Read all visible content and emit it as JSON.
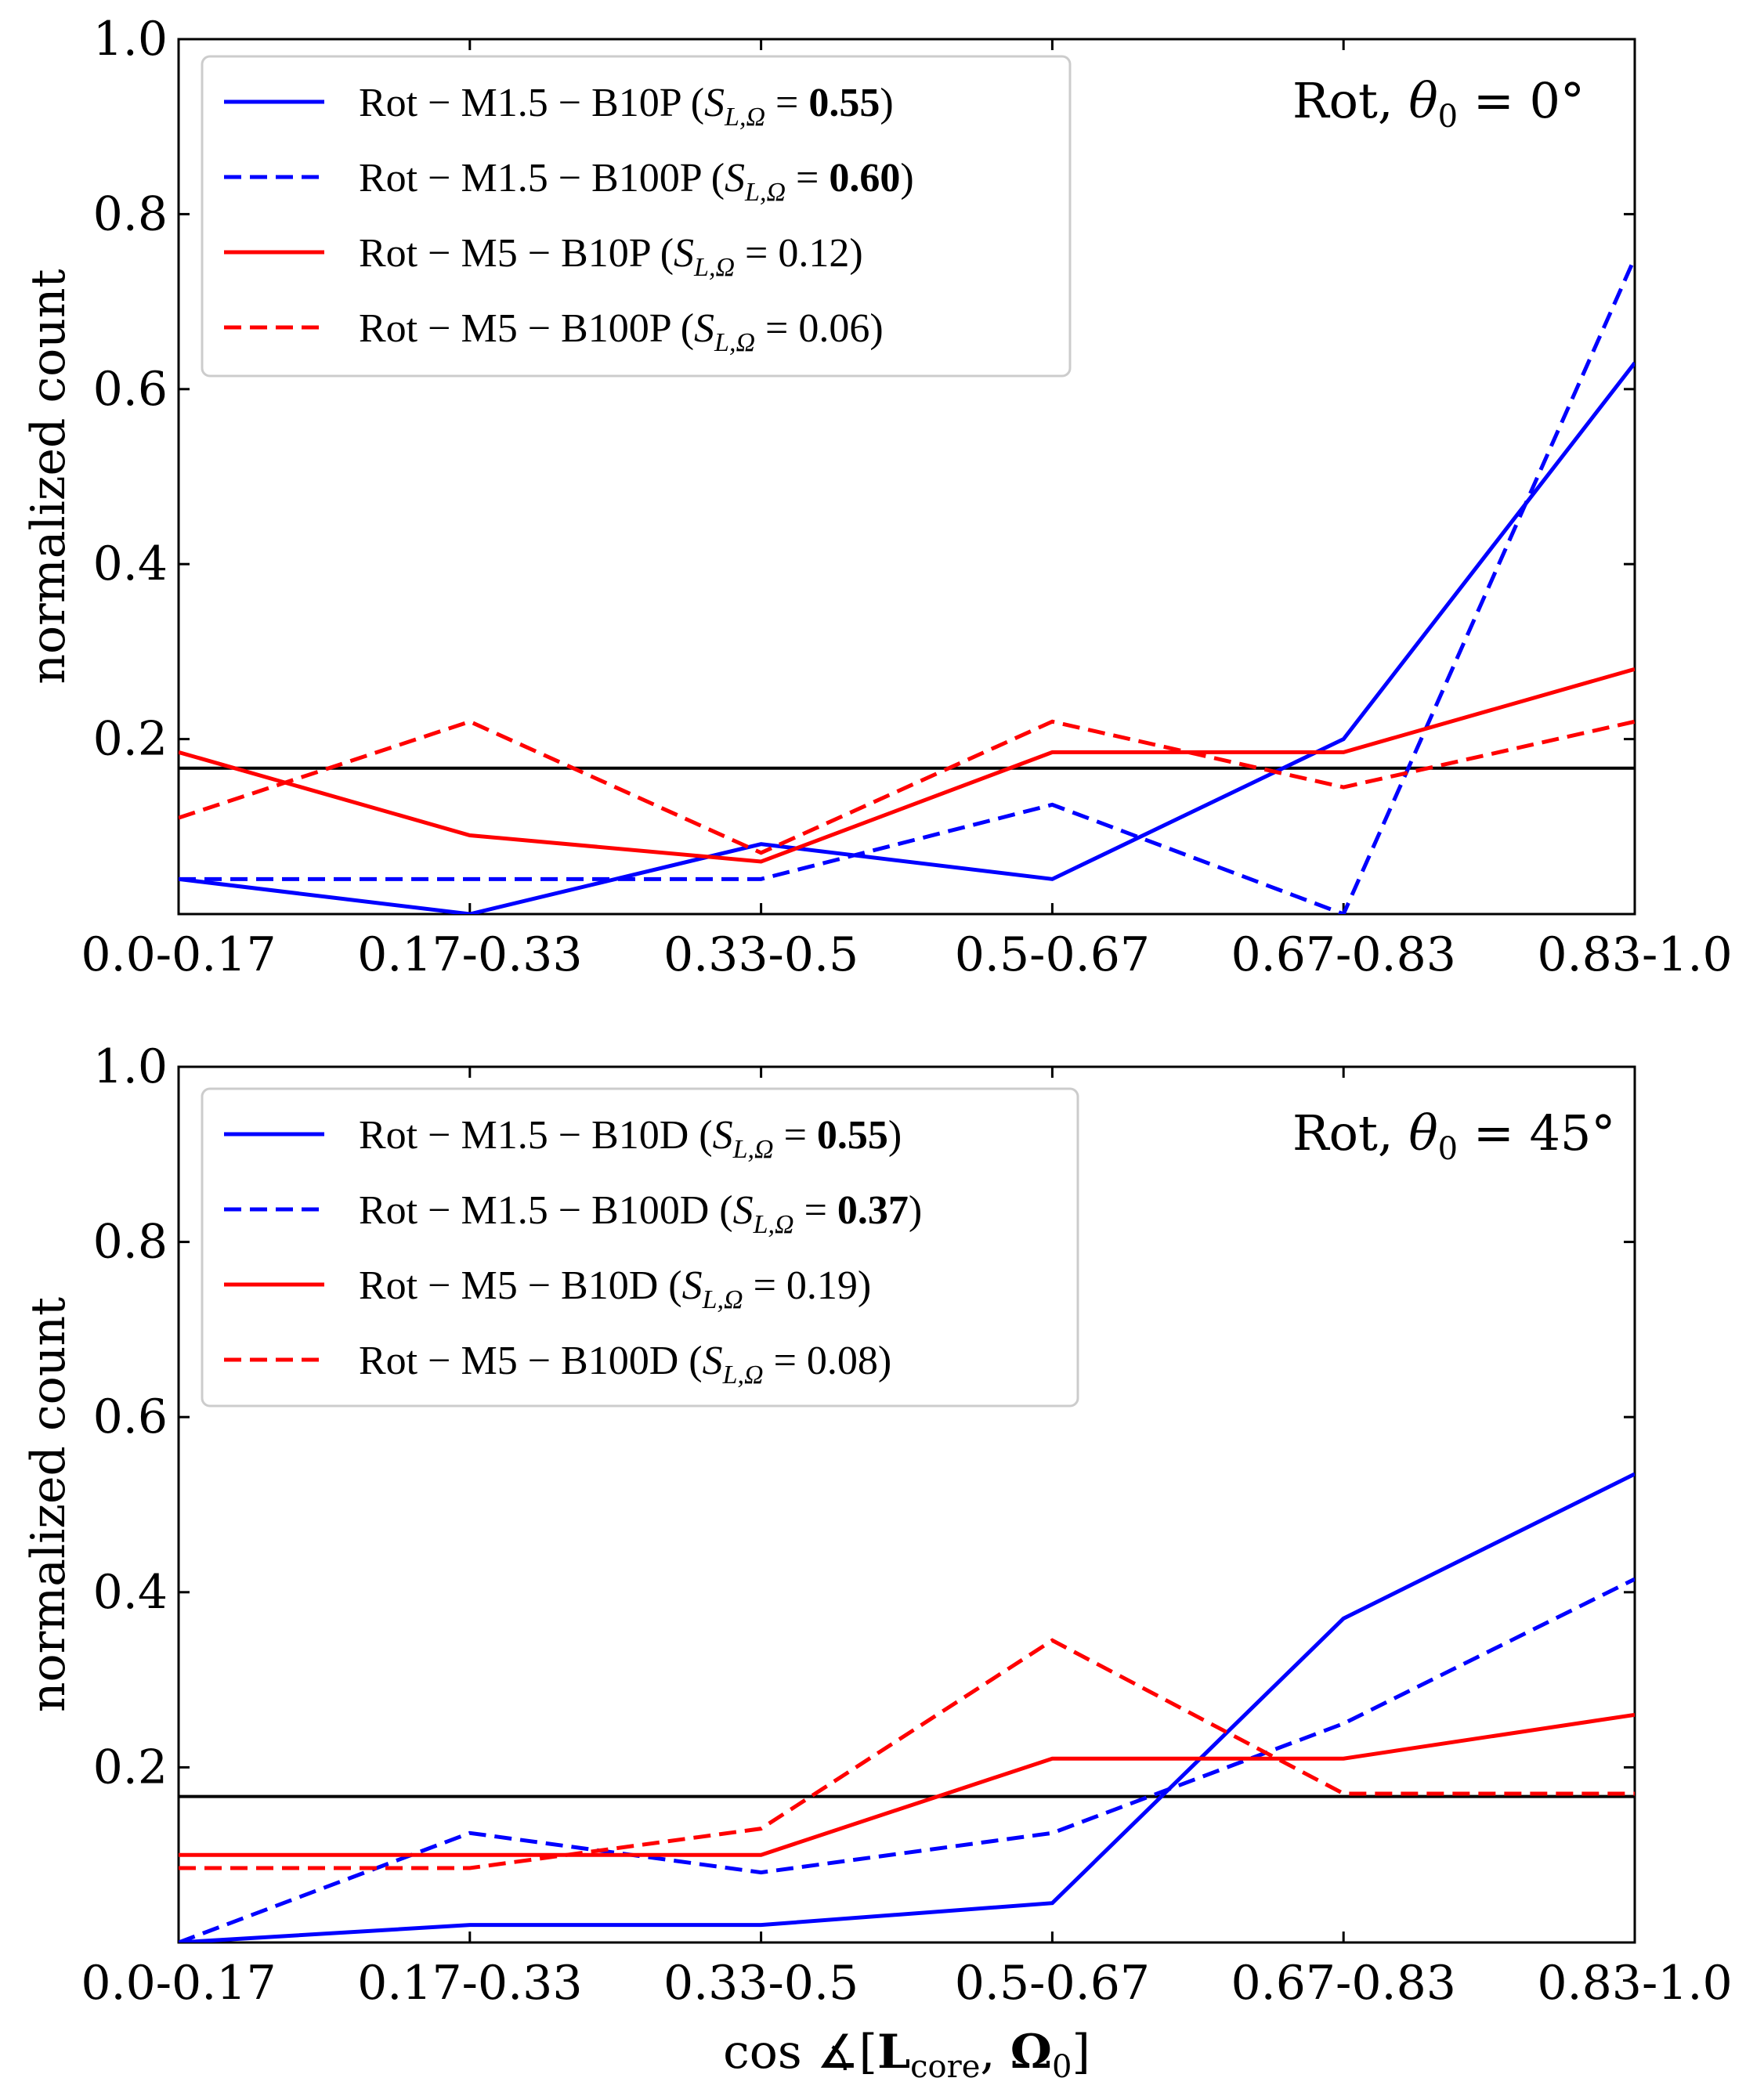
{
  "colors": {
    "blue": "#0000ff",
    "red": "#ff0000",
    "black": "#000000",
    "legend_border": "#cccccc"
  },
  "chart_data": [
    {
      "type": "line",
      "panel": "top",
      "annotation": "Rot, θ₀ = 0°",
      "annotation_parts": {
        "rot": "Rot,",
        "theta": "θ",
        "sub": "0",
        "eq": " = 0°"
      },
      "categories": [
        "0.0-0.17",
        "0.17-0.33",
        "0.33-0.5",
        "0.5-0.67",
        "0.67-0.83",
        "0.83-1.0"
      ],
      "ylabel": "normalized count",
      "xlabel": "",
      "ylim": [
        0,
        1.0
      ],
      "yticks": [
        "0.2",
        "0.4",
        "0.6",
        "0.8",
        "1.0"
      ],
      "ytick_values": [
        0.2,
        0.4,
        0.6,
        0.8,
        1.0
      ],
      "reference_line": 0.1667,
      "legend_position": "top-left",
      "series": [
        {
          "name": "Rot − M1.5 − B10P",
          "score_label": "S",
          "score": "0.55",
          "score_bold": true,
          "color": "blue",
          "dash": "solid",
          "values": [
            0.04,
            0.0,
            0.08,
            0.04,
            0.2,
            0.63
          ]
        },
        {
          "name": "Rot − M1.5 − B100P",
          "score_label": "S",
          "score": "0.60",
          "score_bold": true,
          "color": "blue",
          "dash": "dashed",
          "values": [
            0.04,
            0.04,
            0.04,
            0.125,
            0.0,
            0.75
          ]
        },
        {
          "name": "Rot − M5 − B10P",
          "score_label": "S",
          "score": "0.12",
          "score_bold": false,
          "color": "red",
          "dash": "solid",
          "values": [
            0.185,
            0.09,
            0.06,
            0.185,
            0.185,
            0.28
          ]
        },
        {
          "name": "Rot − M5 − B100P",
          "score_label": "S",
          "score": "0.06",
          "score_bold": false,
          "color": "red",
          "dash": "dashed",
          "values": [
            0.11,
            0.22,
            0.07,
            0.22,
            0.145,
            0.22
          ]
        }
      ]
    },
    {
      "type": "line",
      "panel": "bottom",
      "annotation": "Rot, θ₀ = 45°",
      "annotation_parts": {
        "rot": "Rot,",
        "theta": "θ",
        "sub": "0",
        "eq": " = 45°"
      },
      "categories": [
        "0.0-0.17",
        "0.17-0.33",
        "0.33-0.5",
        "0.5-0.67",
        "0.67-0.83",
        "0.83-1.0"
      ],
      "ylabel": "normalized count",
      "xlabel": "cos ∡[Lcore, Ω0]",
      "xlabel_parts": {
        "pre": "cos ∡[",
        "L": "L",
        "Lsub": "core",
        "comma": ", ",
        "O": "Ω",
        "Osub": "0",
        "post": "]"
      },
      "ylim": [
        0,
        1.0
      ],
      "yticks": [
        "0.2",
        "0.4",
        "0.6",
        "0.8",
        "1.0"
      ],
      "ytick_values": [
        0.2,
        0.4,
        0.6,
        0.8,
        1.0
      ],
      "reference_line": 0.1667,
      "legend_position": "top-left",
      "series": [
        {
          "name": "Rot − M1.5 − B10D",
          "score_label": "S",
          "score": "0.55",
          "score_bold": true,
          "color": "blue",
          "dash": "solid",
          "values": [
            0.0,
            0.02,
            0.02,
            0.045,
            0.37,
            0.535
          ]
        },
        {
          "name": "Rot − M1.5 − B100D",
          "score_label": "S",
          "score": "0.37",
          "score_bold": true,
          "color": "blue",
          "dash": "dashed",
          "values": [
            0.0,
            0.125,
            0.08,
            0.125,
            0.25,
            0.415
          ]
        },
        {
          "name": "Rot − M5 − B10D",
          "score_label": "S",
          "score": "0.19",
          "score_bold": false,
          "color": "red",
          "dash": "solid",
          "values": [
            0.1,
            0.1,
            0.1,
            0.21,
            0.21,
            0.26
          ]
        },
        {
          "name": "Rot − M5 − B100D",
          "score_label": "S",
          "score": "0.08",
          "score_bold": false,
          "color": "red",
          "dash": "dashed",
          "values": [
            0.085,
            0.085,
            0.13,
            0.345,
            0.17,
            0.17
          ]
        }
      ]
    }
  ]
}
